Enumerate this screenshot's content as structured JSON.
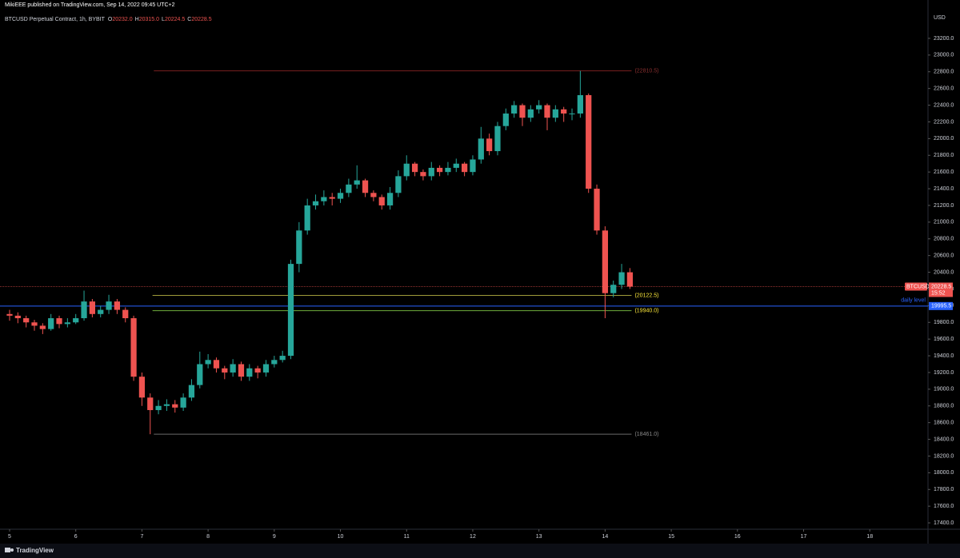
{
  "header": {
    "publisher": "MikiEEE published on TradingView.com, Sep 14, 2022 09:45 UTC+2",
    "legend_title": "BTCUSD Perpetual Contract, 1h, BYBIT",
    "ohlc_labels": [
      "O",
      "H",
      "L",
      "C"
    ],
    "ohlc_values": [
      "20232.0",
      "20315.0",
      "20224.5",
      "20228.5"
    ],
    "currency": "USD",
    "brand": "TradingView"
  },
  "chart_data": {
    "type": "candlestick",
    "up_color": "#26a69a",
    "down_color": "#ef5350",
    "grid": false,
    "x": [
      5,
      5.125,
      5.25,
      5.375,
      5.5,
      5.625,
      5.75,
      5.875,
      6,
      6.125,
      6.25,
      6.375,
      6.5,
      6.625,
      6.75,
      6.875,
      7,
      7.125,
      7.25,
      7.375,
      7.5,
      7.625,
      7.75,
      7.875,
      8,
      8.125,
      8.25,
      8.375,
      8.5,
      8.625,
      8.75,
      8.875,
      9,
      9.125,
      9.25,
      9.375,
      9.5,
      9.625,
      9.75,
      9.875,
      10,
      10.125,
      10.25,
      10.375,
      10.5,
      10.625,
      10.75,
      10.875,
      11,
      11.125,
      11.25,
      11.375,
      11.5,
      11.625,
      11.75,
      11.875,
      12,
      12.125,
      12.25,
      12.375,
      12.5,
      12.625,
      12.75,
      12.875,
      13,
      13.125,
      13.25,
      13.375,
      13.5,
      13.625,
      13.75,
      13.875,
      14,
      14.125,
      14.25,
      14.375
    ],
    "open": [
      19900,
      19880,
      19850,
      19800,
      19760,
      19720,
      19850,
      19780,
      19800,
      19850,
      20050,
      19900,
      19950,
      20050,
      19950,
      19850,
      19150,
      18900,
      18750,
      18800,
      18820,
      18780,
      18900,
      19050,
      19300,
      19350,
      19250,
      19200,
      19300,
      19150,
      19250,
      19200,
      19300,
      19350,
      19400,
      20500,
      20900,
      21200,
      21250,
      21300,
      21280,
      21350,
      21450,
      21500,
      21350,
      21300,
      21200,
      21350,
      21550,
      21700,
      21600,
      21550,
      21650,
      21600,
      21650,
      21700,
      21600,
      21750,
      22000,
      21850,
      22150,
      22300,
      22400,
      22250,
      22350,
      22400,
      22250,
      22350,
      22300,
      22300,
      22520,
      21400,
      20900,
      20150,
      20250,
      20400
    ],
    "high": [
      19950,
      19920,
      19880,
      19830,
      19790,
      19900,
      19880,
      19850,
      19900,
      20180,
      20080,
      20000,
      20130,
      20080,
      19980,
      19880,
      19200,
      18950,
      18870,
      18880,
      18870,
      18950,
      19120,
      19450,
      19420,
      19380,
      19280,
      19360,
      19330,
      19300,
      19280,
      19350,
      19400,
      19460,
      20550,
      21000,
      21280,
      21330,
      21380,
      21350,
      21400,
      21520,
      21680,
      21520,
      21380,
      21330,
      21420,
      21620,
      21800,
      21720,
      21630,
      21720,
      21680,
      21720,
      21760,
      21720,
      21800,
      22140,
      22060,
      22200,
      22360,
      22450,
      22420,
      22400,
      22460,
      22420,
      22400,
      22380,
      22360,
      22810.5,
      22540,
      21450,
      20950,
      20300,
      20500,
      20450
    ],
    "low": [
      19820,
      19790,
      19740,
      19700,
      19660,
      19700,
      19730,
      19740,
      19780,
      19820,
      19860,
      19860,
      19900,
      19900,
      19800,
      19100,
      18800,
      18461,
      18700,
      18740,
      18720,
      18740,
      18860,
      19010,
      19250,
      19200,
      19120,
      19150,
      19100,
      19100,
      19130,
      19150,
      19260,
      19320,
      19360,
      20400,
      20850,
      21150,
      21200,
      21200,
      21230,
      21300,
      21400,
      21300,
      21250,
      21150,
      21150,
      21300,
      21500,
      21550,
      21500,
      21500,
      21550,
      21560,
      21600,
      21550,
      21560,
      21700,
      21800,
      21800,
      22100,
      22250,
      22150,
      22200,
      22300,
      22100,
      22200,
      22200,
      22220,
      22250,
      21350,
      20850,
      19850,
      20100,
      20200,
      20200
    ],
    "close": [
      19880,
      19850,
      19800,
      19760,
      19720,
      19850,
      19780,
      19800,
      19850,
      20050,
      19900,
      19950,
      20050,
      19950,
      19850,
      19150,
      18900,
      18750,
      18800,
      18820,
      18780,
      18900,
      19050,
      19300,
      19350,
      19250,
      19200,
      19300,
      19150,
      19250,
      19200,
      19300,
      19350,
      19400,
      20500,
      20900,
      21200,
      21250,
      21300,
      21280,
      21350,
      21450,
      21500,
      21350,
      21300,
      21200,
      21350,
      21550,
      21700,
      21600,
      21550,
      21650,
      21600,
      21650,
      21700,
      21600,
      21750,
      22000,
      21850,
      22150,
      22300,
      22400,
      22250,
      22350,
      22400,
      22250,
      22350,
      22300,
      22300,
      22520,
      21400,
      20900,
      20150,
      20250,
      20400,
      20228.5
    ],
    "xlim": [
      4.855,
      18.88
    ],
    "xticks": [
      5,
      6,
      7,
      8,
      9,
      10,
      11,
      12,
      13,
      14,
      15,
      16,
      17,
      18
    ],
    "ylim": [
      17324,
      23659
    ],
    "yticks": [
      {
        "value": 17400,
        "label": "17400.0"
      },
      {
        "value": 17600,
        "label": "17600.0"
      },
      {
        "value": 17800,
        "label": "17800.0"
      },
      {
        "value": 18000,
        "label": "18000.0"
      },
      {
        "value": 18200,
        "label": "18200.0"
      },
      {
        "value": 18400,
        "label": "18400.0"
      },
      {
        "value": 18600,
        "label": "18600.0"
      },
      {
        "value": 18800,
        "label": "18800.0"
      },
      {
        "value": 19000,
        "label": "19000.0"
      },
      {
        "value": 19200,
        "label": "19200.0"
      },
      {
        "value": 19400,
        "label": "19400.0"
      },
      {
        "value": 19600,
        "label": "19600.0"
      },
      {
        "value": 19800,
        "label": "19800.0"
      },
      {
        "value": 20000,
        "label": "20000.0"
      },
      {
        "value": 20200,
        "label": "20200.0"
      },
      {
        "value": 20400,
        "label": "20400.0"
      },
      {
        "value": 20600,
        "label": "20600.0"
      },
      {
        "value": 20800,
        "label": "20800.0"
      },
      {
        "value": 21000,
        "label": "21000.0"
      },
      {
        "value": 21200,
        "label": "21200.0"
      },
      {
        "value": 21400,
        "label": "21400.0"
      },
      {
        "value": 21600,
        "label": "21600.0"
      },
      {
        "value": 21800,
        "label": "21800.0"
      },
      {
        "value": 22000,
        "label": "22000.0"
      },
      {
        "value": 22200,
        "label": "22200.0"
      },
      {
        "value": 22400,
        "label": "22400.0"
      },
      {
        "value": 22600,
        "label": "22600.0"
      },
      {
        "value": 22800,
        "label": "22800.0"
      },
      {
        "value": 23000,
        "label": "23000.0"
      },
      {
        "value": 23200,
        "label": "23200.0"
      }
    ],
    "levels": [
      {
        "value": 22810.5,
        "label": "(22810.5)",
        "start": 7.18,
        "end": 14.4,
        "color": "#7a2020",
        "label_color": "#8a2f2f"
      },
      {
        "value": 20122.5,
        "label": "(20122.5)",
        "start": 7.16,
        "end": 14.4,
        "color": "#9e9b3a",
        "label_color": "#ffeb3b"
      },
      {
        "value": 19940,
        "label": "(19940.0)",
        "start": 7.16,
        "end": 14.4,
        "color": "#6fae3d",
        "label_color": "#ffeb3b"
      },
      {
        "value": 18461,
        "label": "(18461.0)",
        "start": 7.18,
        "end": 14.4,
        "color": "#6a6a6a",
        "label_color": "#8a8a8a"
      }
    ],
    "daily_level": {
      "value": 19995.5,
      "label": "daily level",
      "color": "#2962ff"
    },
    "last_price": {
      "value": 20228.5,
      "symbol": "BTCUSD",
      "countdown": "15:52",
      "color": "#ef5350"
    }
  }
}
